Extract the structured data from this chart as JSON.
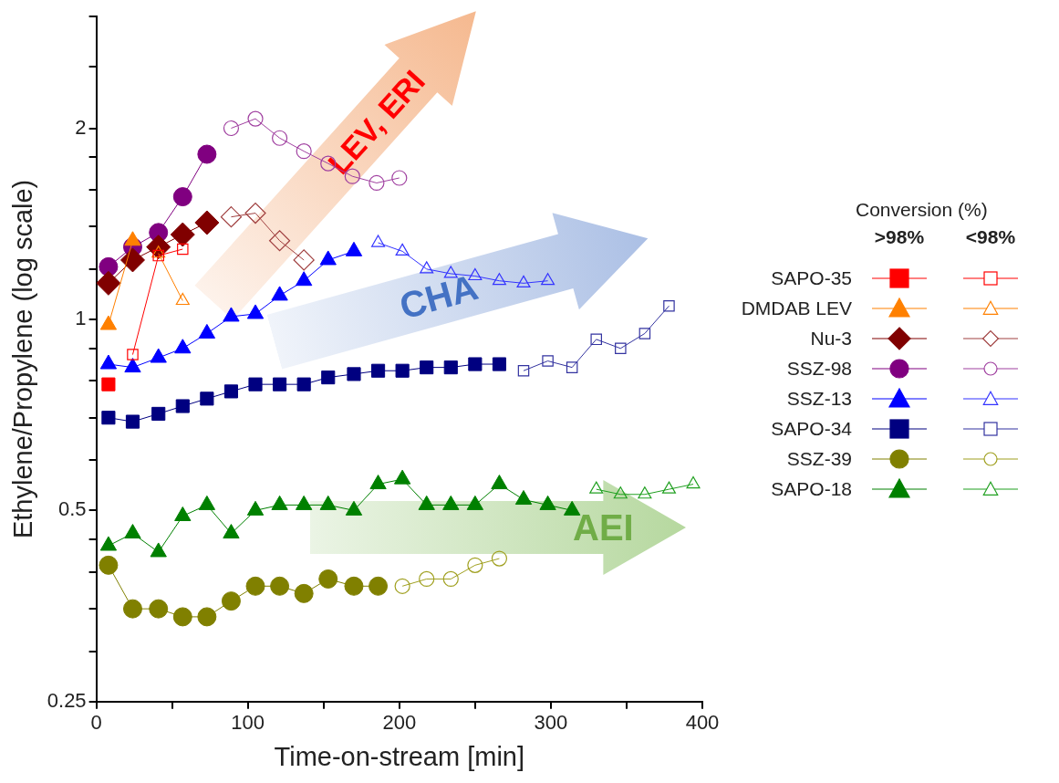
{
  "chart_data": {
    "type": "line",
    "xlabel": "Time-on-stream [min]",
    "ylabel": "Ethylene/Propylene (log scale)",
    "legend_title": "Conversion (%)",
    "annotations": [
      "LEV, ERI",
      "CHA",
      "AEI",
      ">98%",
      "<98%"
    ],
    "xlim": [
      0,
      400
    ],
    "xticks": [
      0,
      {
        "value": 50,
        "label": null
      },
      100,
      {
        "value": 150,
        "label": null
      },
      200,
      {
        "value": 250,
        "label": null
      },
      300,
      {
        "value": 350,
        "label": null
      },
      400
    ],
    "ylim": [
      0.25,
      3
    ],
    "yticks": [
      0.25,
      {
        "value": 0.3,
        "label": null
      },
      {
        "value": 0.35,
        "label": null
      },
      {
        "value": 0.4,
        "label": null
      },
      {
        "value": 0.45,
        "label": null
      },
      0.5,
      {
        "value": 0.6,
        "label": null
      },
      {
        "value": 0.7,
        "label": null
      },
      {
        "value": 0.8,
        "label": null
      },
      {
        "value": 0.9,
        "label": null
      },
      1,
      {
        "value": 1.2,
        "label": null
      },
      {
        "value": 1.4,
        "label": null
      },
      {
        "value": 1.6,
        "label": null
      },
      {
        "value": 1.8,
        "label": null
      },
      2,
      {
        "value": 2.5,
        "label": null
      },
      {
        "value": 3,
        "label": null
      }
    ],
    "log": "y",
    "grid": false,
    "legend": "right",
    "series": [
      {
        "name": "SAPO-35",
        "color": "#ff0000",
        "marker": "square",
        "x": [
          8
        ],
        "values": [
          0.79
        ]
      },
      {
        "color": "#ff0000",
        "marker": "square",
        "x": [
          24,
          41,
          57
        ],
        "values": [
          0.88,
          1.26,
          1.29
        ]
      },
      {
        "name": "DMDAB LEV",
        "color": "#ff8000",
        "marker": "triangle",
        "x": [
          8,
          24
        ],
        "values": [
          0.98,
          1.33
        ]
      },
      {
        "color": "#ff8000",
        "marker": "triangle",
        "x": [
          41,
          57
        ],
        "values": [
          1.27,
          1.07
        ]
      },
      {
        "name": "Nu-3",
        "color": "#800000",
        "marker": "diamond",
        "x": [
          8,
          24,
          41,
          57,
          73
        ],
        "values": [
          1.14,
          1.24,
          1.3,
          1.36,
          1.42
        ]
      },
      {
        "color": "#a04040",
        "marker": "diamond",
        "x": [
          89,
          105,
          121,
          137
        ],
        "values": [
          1.45,
          1.47,
          1.33,
          1.24
        ]
      },
      {
        "name": "SSZ-98",
        "color": "#800080",
        "marker": "circle",
        "x": [
          8,
          24,
          41,
          57,
          73
        ],
        "values": [
          1.21,
          1.3,
          1.37,
          1.56,
          1.82
        ]
      },
      {
        "color": "#a040a0",
        "marker": "circle",
        "x": [
          89,
          105,
          121,
          137,
          153,
          169,
          185,
          200
        ],
        "values": [
          2.0,
          2.07,
          1.93,
          1.84,
          1.76,
          1.68,
          1.64,
          1.67
        ]
      },
      {
        "name": "SSZ-13",
        "color": "#0000ff",
        "marker": "triangle",
        "x": [
          8,
          24,
          41,
          57,
          73,
          89,
          105,
          121,
          137,
          153,
          170
        ],
        "values": [
          0.85,
          0.84,
          0.87,
          0.9,
          0.95,
          1.01,
          1.02,
          1.09,
          1.15,
          1.24,
          1.28
        ]
      },
      {
        "color": "#3333ff",
        "marker": "triangle",
        "x": [
          186,
          202,
          218,
          234,
          250,
          266,
          282,
          298
        ],
        "values": [
          1.32,
          1.28,
          1.2,
          1.18,
          1.17,
          1.15,
          1.14,
          1.15
        ]
      },
      {
        "name": "SAPO-34",
        "color": "#000080",
        "marker": "square",
        "x": [
          8,
          24,
          41,
          57,
          73,
          89,
          105,
          121,
          137,
          153,
          170,
          186,
          202,
          218,
          234,
          250,
          266
        ],
        "values": [
          0.7,
          0.69,
          0.71,
          0.73,
          0.75,
          0.77,
          0.79,
          0.79,
          0.79,
          0.81,
          0.82,
          0.83,
          0.83,
          0.84,
          0.84,
          0.85,
          0.85
        ]
      },
      {
        "color": "#3333a0",
        "marker": "square",
        "x": [
          282,
          298,
          314,
          330,
          346,
          362,
          378
        ],
        "values": [
          0.83,
          0.86,
          0.84,
          0.93,
          0.9,
          0.95,
          1.05
        ]
      },
      {
        "name": "SSZ-39",
        "color": "#808000",
        "marker": "circle",
        "x": [
          8,
          24,
          41,
          57,
          73,
          89,
          105,
          121,
          137,
          153,
          170,
          186
        ],
        "values": [
          0.41,
          0.35,
          0.35,
          0.34,
          0.34,
          0.36,
          0.38,
          0.38,
          0.37,
          0.39,
          0.38,
          0.38
        ]
      },
      {
        "color": "#a0a020",
        "marker": "circle",
        "x": [
          202,
          218,
          234,
          250,
          266
        ],
        "values": [
          0.38,
          0.39,
          0.39,
          0.41,
          0.42
        ]
      },
      {
        "name": "SAPO-18",
        "color": "#008000",
        "marker": "triangle",
        "x": [
          8,
          24,
          41,
          57,
          73,
          89,
          105,
          121,
          137,
          153,
          170,
          186,
          202,
          218,
          234,
          250,
          266,
          282,
          298,
          314
        ],
        "values": [
          0.44,
          0.46,
          0.43,
          0.49,
          0.51,
          0.46,
          0.5,
          0.51,
          0.51,
          0.51,
          0.5,
          0.55,
          0.56,
          0.51,
          0.51,
          0.51,
          0.55,
          0.52,
          0.51,
          0.5
        ]
      },
      {
        "color": "#20a020",
        "marker": "triangle",
        "x": [
          330,
          346,
          362,
          378,
          394
        ],
        "values": [
          0.54,
          0.53,
          0.53,
          0.54,
          0.55
        ]
      }
    ]
  }
}
